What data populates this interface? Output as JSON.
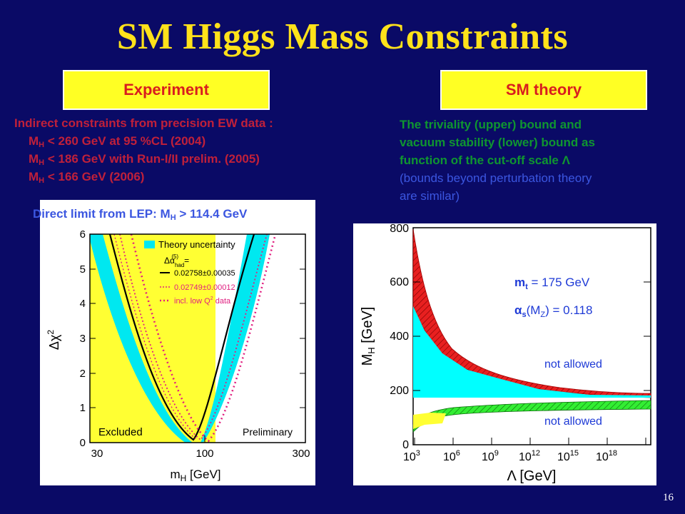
{
  "title": "SM Higgs Mass Constraints",
  "left_header": "Experiment",
  "right_header": "SM theory",
  "indirect": {
    "intro": "Indirect constraints from precision EW data :",
    "lines": [
      {
        "m": "M",
        "sub": "H",
        "text": " < 260 GeV at 95 %CL (2004)"
      },
      {
        "m": "M",
        "sub": "H",
        "text": " < 186 GeV with Run-I/II prelim. (2005)"
      },
      {
        "m": "M",
        "sub": "H",
        "text": " < 166 GeV (2006)"
      }
    ]
  },
  "direct": {
    "prefix": "Direct limit from LEP: M",
    "sub": "H",
    "suffix": " > 114.4  GeV"
  },
  "theory": {
    "green_line1": "The triviality (upper) bound and",
    "green_line2": "vacuum stability (lower) bound as",
    "green_line3": "function of the cut-off scale Λ",
    "blue_line1": "(bounds beyond perturbation theory",
    "blue_line2": "are similar)"
  },
  "page_number": "16",
  "left_plot": {
    "ylabel": "Δχ",
    "ylabel_sup": "2",
    "xlabel": "m",
    "xlabel_sub": "H",
    "xlabel_unit": " [GeV]",
    "x_ticks": [
      "30",
      "100",
      "300"
    ],
    "y_ticks": [
      "0",
      "1",
      "2",
      "3",
      "4",
      "5",
      "6"
    ],
    "legend": {
      "band": "Theory uncertainty",
      "alpha": "Δα",
      "alpha_sup": "(5)",
      "alpha_sub": "had",
      "alpha_eq": "=",
      "line1": "0.02758±0.00035",
      "line2": "0.02749±0.00012",
      "line3": "incl. low Q",
      "line3_sup": "2",
      "line3_end": " data"
    },
    "excluded": "Excluded",
    "preliminary": "Preliminary",
    "colors": {
      "excluded": "#ffff33",
      "band": "#00e8f0",
      "dotted": "#e02080",
      "curve": "#000000"
    }
  },
  "right_plot": {
    "ylabel": "M",
    "ylabel_sub": "H",
    "ylabel_unit": " [GeV]",
    "y_ticks": [
      "0",
      "200",
      "400",
      "600",
      "800"
    ],
    "x_ticks": [
      {
        "b": "10",
        "e": "3"
      },
      {
        "b": "10",
        "e": "6"
      },
      {
        "b": "10",
        "e": "9"
      },
      {
        "b": "10",
        "e": "12"
      },
      {
        "b": "10",
        "e": "15"
      },
      {
        "b": "10",
        "e": "18"
      }
    ],
    "xlabel": "Λ",
    "xlabel_unit": " [GeV]",
    "mt_label": "m",
    "mt_sub": "t",
    "mt_val": " = 175 GeV",
    "as_label": "α",
    "as_sub": "s",
    "as_arg": "(M",
    "as_arg_sub": "Z",
    "as_val": ") = 0.118",
    "not_allowed_upper": "not allowed",
    "not_allowed_lower": "not allowed",
    "colors": {
      "upper": "#e82020",
      "lower": "#33ee33",
      "cyan": "#00ffff",
      "yellow": "#ffff33"
    }
  }
}
